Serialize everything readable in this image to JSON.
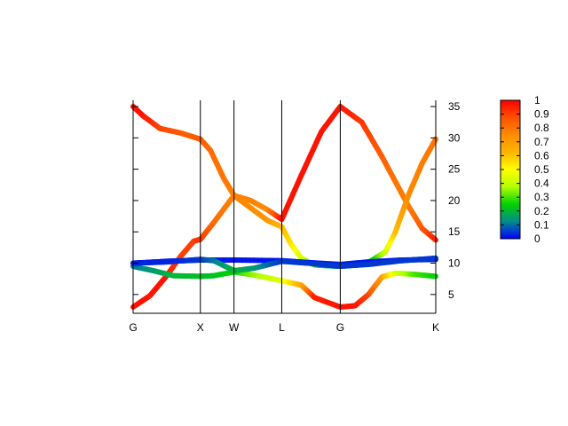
{
  "chart_data": {
    "type": "scatter",
    "title": "",
    "xlabel": "",
    "ylabel": "",
    "x_ticks": [
      {
        "label": "G",
        "x": 0
      },
      {
        "label": "X",
        "x": 1
      },
      {
        "label": "W",
        "x": 1.5
      },
      {
        "label": "L",
        "x": 2.21
      },
      {
        "label": "G",
        "x": 3.08
      },
      {
        "label": "K",
        "x": 4.5
      }
    ],
    "xlim": [
      0,
      4.5
    ],
    "ylim": [
      2,
      36
    ],
    "y_axis_side": "right",
    "y_ticks": [
      5,
      10,
      15,
      20,
      25,
      30,
      35
    ],
    "grid": "vertical lines at high-symmetry points",
    "colorbar": {
      "range": [
        0,
        1
      ],
      "ticks": [
        "0",
        "0.1",
        "0.2",
        "0.3",
        "0.4",
        "0.5",
        "0.6",
        "0.7",
        "0.8",
        "0.9",
        "1"
      ],
      "colors": [
        "#0000ff",
        "#008c8c",
        "#00d200",
        "#b4ff00",
        "#ffff00",
        "#ffb400",
        "#ff8c00",
        "#ff5000",
        "#ff0000"
      ]
    },
    "series": [
      {
        "points": [
          [
            0,
            3,
            0.97
          ],
          [
            0.25,
            4.8,
            0.97
          ],
          [
            0.5,
            8,
            0.97
          ],
          [
            0.7,
            11,
            0.9
          ],
          [
            0.9,
            13.5,
            0.9
          ],
          [
            1,
            13.8,
            0.92
          ],
          [
            1.2,
            16.5,
            0.82
          ],
          [
            1.5,
            20.8,
            0.77
          ],
          [
            1.75,
            20,
            0.77
          ],
          [
            2,
            18.5,
            0.75
          ],
          [
            2.21,
            17,
            0.97
          ],
          [
            2.5,
            24,
            0.97
          ],
          [
            2.8,
            31,
            0.97
          ],
          [
            3.08,
            35,
            0.97
          ],
          [
            3.4,
            32.5,
            0.92
          ],
          [
            3.7,
            27,
            0.85
          ],
          [
            3.9,
            23,
            0.8
          ],
          [
            4.1,
            19,
            0.78
          ],
          [
            4.3,
            15.5,
            0.85
          ],
          [
            4.5,
            13.7,
            0.95
          ]
        ]
      },
      {
        "points": [
          [
            0,
            35,
            0.97
          ],
          [
            0.15,
            33.5,
            0.97
          ],
          [
            0.4,
            31.5,
            0.9
          ],
          [
            0.7,
            30.8,
            0.85
          ],
          [
            1,
            29.8,
            0.85
          ],
          [
            1.15,
            28,
            0.82
          ],
          [
            1.35,
            23.5,
            0.8
          ],
          [
            1.5,
            20.8,
            0.77
          ],
          [
            1.75,
            18.8,
            0.75
          ],
          [
            2,
            16.8,
            0.72
          ],
          [
            2.21,
            15.8,
            0.62
          ],
          [
            2.35,
            13,
            0.55
          ],
          [
            2.5,
            10.8,
            0.45
          ],
          [
            2.7,
            9.7,
            0.3
          ],
          [
            3.08,
            9.5,
            0.1
          ],
          [
            3.5,
            10.1,
            0.15
          ],
          [
            3.75,
            11.8,
            0.4
          ],
          [
            3.9,
            15,
            0.6
          ],
          [
            4.1,
            21,
            0.75
          ],
          [
            4.3,
            26,
            0.78
          ],
          [
            4.5,
            29.8,
            0.8
          ]
        ]
      },
      {
        "points": [
          [
            0,
            9.5,
            0.1
          ],
          [
            0.3,
            8.8,
            0.15
          ],
          [
            0.6,
            8,
            0.2
          ],
          [
            1,
            7.9,
            0.22
          ],
          [
            1.2,
            8,
            0.22
          ],
          [
            1.5,
            8.6,
            0.25
          ],
          [
            1.8,
            8.1,
            0.35
          ],
          [
            2.21,
            7.2,
            0.45
          ],
          [
            2.5,
            6.5,
            0.65
          ],
          [
            2.7,
            4.5,
            0.95
          ],
          [
            3.08,
            3,
            0.97
          ],
          [
            3.3,
            3.2,
            0.97
          ],
          [
            3.5,
            5,
            0.9
          ],
          [
            3.7,
            7.8,
            0.7
          ],
          [
            3.9,
            8.4,
            0.45
          ],
          [
            4.2,
            8.2,
            0.3
          ],
          [
            4.5,
            7.9,
            0.25
          ]
        ]
      },
      {
        "points": [
          [
            0,
            10,
            0
          ],
          [
            0.5,
            10.3,
            0.02
          ],
          [
            1,
            10.5,
            0.03
          ],
          [
            1.5,
            10.5,
            0.02
          ],
          [
            2.21,
            10.4,
            0.02
          ],
          [
            2.6,
            10.1,
            0.02
          ],
          [
            3.08,
            9.8,
            0.03
          ],
          [
            3.5,
            10.2,
            0.02
          ],
          [
            4,
            10.5,
            0.02
          ],
          [
            4.5,
            10.6,
            0.02
          ]
        ]
      },
      {
        "points": [
          [
            0,
            10,
            0.03
          ],
          [
            0.5,
            10.2,
            0.03
          ],
          [
            1,
            10.6,
            0.05
          ],
          [
            1.2,
            10.4,
            0.1
          ],
          [
            1.5,
            8.8,
            0.2
          ],
          [
            1.8,
            9.2,
            0.15
          ],
          [
            2.21,
            10.3,
            0.05
          ],
          [
            2.6,
            10,
            0.05
          ],
          [
            3.08,
            9.5,
            0.05
          ],
          [
            3.5,
            9.8,
            0.05
          ],
          [
            4,
            10.4,
            0.05
          ],
          [
            4.5,
            10.8,
            0.05
          ]
        ]
      }
    ]
  }
}
